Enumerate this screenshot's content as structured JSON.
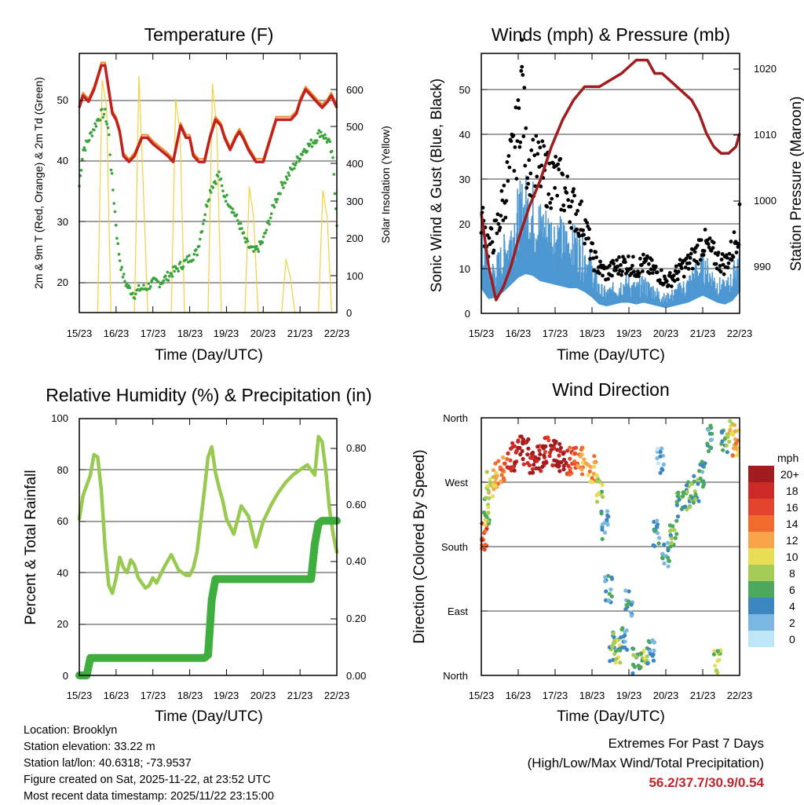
{
  "panels": {
    "temp": {
      "title": "Temperature (F)",
      "ylabel_left": "2m & 9m T (Red, Orange) & 2m Td (Green)",
      "ylabel_right": "Solar Insolation (Yellow)",
      "xlabel": "Time (Day/UTC)",
      "xticks": [
        "15/23",
        "16/23",
        "17/23",
        "18/23",
        "19/23",
        "20/23",
        "21/23",
        "22/23"
      ],
      "yticks_left": [
        "20",
        "30",
        "40",
        "50"
      ],
      "yticks_right": [
        "0",
        "100",
        "200",
        "300",
        "400",
        "500",
        "600"
      ]
    },
    "wind": {
      "title": "Winds (mph) & Pressure (mb)",
      "ylabel_left": "Sonic Wind & Gust (Blue, Black)",
      "ylabel_right": "Station Pressure (Maroon)",
      "xlabel": "Time (Day/UTC)",
      "xticks": [
        "15/23",
        "16/23",
        "17/23",
        "18/23",
        "19/23",
        "20/23",
        "21/23",
        "22/23"
      ],
      "yticks_left": [
        "0",
        "10",
        "20",
        "30",
        "40",
        "50"
      ],
      "yticks_right": [
        "990",
        "1000",
        "1010",
        "1020"
      ]
    },
    "rh": {
      "title": "Relative Humidity (%) & Precipitation (in)",
      "ylabel_left": "Percent & Total Rainfall",
      "xlabel": "Time (Day/UTC)",
      "xticks": [
        "15/23",
        "16/23",
        "17/23",
        "18/23",
        "19/23",
        "20/23",
        "21/23",
        "22/23"
      ],
      "yticks_left": [
        "0",
        "20",
        "40",
        "60",
        "80",
        "100"
      ],
      "yticks_right": [
        "0.00",
        "0.20",
        "0.40",
        "0.60",
        "0.80"
      ]
    },
    "dir": {
      "title": "Wind Direction",
      "ylabel_left": "Direction (Colored By Speed)",
      "xlabel": "Time (Day/UTC)",
      "xticks": [
        "15/23",
        "16/23",
        "17/23",
        "18/23",
        "19/23",
        "20/23",
        "21/23",
        "22/23"
      ],
      "yticks_left": [
        "North",
        "East",
        "South",
        "West",
        "North"
      ],
      "legend_title": "mph",
      "legend_labels": [
        "20+",
        "18",
        "16",
        "14",
        "12",
        "10",
        "8",
        "6",
        "4",
        "2",
        "0"
      ],
      "legend_colors": [
        "#a01c1e",
        "#cc2a27",
        "#e2442e",
        "#f26b2e",
        "#f8a54a",
        "#e9dd56",
        "#a6cc57",
        "#4ca85a",
        "#3d87c1",
        "#7ab8e2",
        "#bfe6f7"
      ]
    }
  },
  "chart_data": [
    {
      "type": "line",
      "title": "Temperature (F)",
      "xlabel": "Time (Day/UTC)",
      "ylabel": "2m & 9m T (Red, Orange) & 2m Td (Green)",
      "y2label": "Solar Insolation (Yellow)",
      "x_days": [
        0,
        7
      ],
      "ylim": [
        15,
        58
      ],
      "y2lim": [
        0,
        680
      ],
      "series": [
        {
          "name": "2m T",
          "color": "#c0201e",
          "axis": "left",
          "x": [
            0,
            0.1,
            0.25,
            0.4,
            0.55,
            0.6,
            0.7,
            0.85,
            0.9,
            1.0,
            1.1,
            1.2,
            1.35,
            1.5,
            1.7,
            1.85,
            2.0,
            2.2,
            2.4,
            2.55,
            2.65,
            2.75,
            2.9,
            3.0,
            3.1,
            3.25,
            3.4,
            3.55,
            3.7,
            3.85,
            3.95,
            4.1,
            4.25,
            4.35,
            4.45,
            4.6,
            4.8,
            5.0,
            5.2,
            5.35,
            5.6,
            5.75,
            5.9,
            6.0,
            6.15,
            6.3,
            6.45,
            6.6,
            6.75,
            6.85,
            7.0
          ],
          "values": [
            49,
            51,
            50,
            52,
            55,
            56,
            56,
            50,
            48,
            47,
            45,
            41,
            40,
            41,
            44,
            44,
            43,
            42,
            41,
            40,
            43,
            46,
            44,
            44,
            41,
            40,
            40,
            44,
            47,
            46,
            44,
            42,
            44,
            45,
            44,
            42,
            40,
            40,
            44,
            47,
            47,
            47,
            48,
            50,
            52,
            51,
            50,
            49,
            50,
            51,
            49
          ]
        },
        {
          "name": "2m Td",
          "color": "#3aa43a",
          "axis": "left",
          "x": [
            0,
            0.1,
            0.2,
            0.35,
            0.5,
            0.6,
            0.7,
            0.8,
            0.85,
            0.95,
            1.05,
            1.15,
            1.25,
            1.35,
            1.5,
            1.65,
            1.8,
            2.0,
            2.2,
            2.4,
            2.6,
            2.8,
            3.0,
            3.2,
            3.3,
            3.4,
            3.5,
            3.6,
            3.7,
            3.8,
            3.9,
            4.0,
            4.1,
            4.25,
            4.4,
            4.5,
            4.6,
            4.75,
            4.9,
            5.0,
            5.15,
            5.3,
            5.5,
            5.7,
            5.9,
            6.1,
            6.3,
            6.45,
            6.55,
            6.7,
            6.8,
            6.9,
            7.0
          ],
          "values": [
            36,
            42,
            43,
            45,
            47,
            48,
            48,
            45,
            40,
            33,
            26,
            22,
            20,
            19,
            18,
            19,
            19,
            20,
            20,
            21,
            22,
            23,
            24,
            25,
            28,
            31,
            34,
            36,
            37,
            38,
            35,
            34,
            33,
            31,
            29,
            27,
            26,
            25,
            26,
            27,
            30,
            33,
            36,
            38,
            40,
            42,
            43,
            44,
            45,
            44,
            43,
            40,
            30
          ]
        },
        {
          "name": "Solar Insolation",
          "color": "#f2d040",
          "axis": "right",
          "x": [
            0.5,
            0.62,
            0.74,
            0.86,
            1.5,
            1.62,
            1.74,
            1.86,
            2.5,
            2.62,
            2.74,
            2.86,
            3.5,
            3.62,
            3.74,
            3.86,
            4.5,
            4.62,
            4.74,
            4.86,
            5.5,
            5.62,
            5.74,
            5.86,
            6.5,
            6.62,
            6.74,
            6.86
          ],
          "values": [
            0,
            610,
            540,
            0,
            0,
            620,
            330,
            0,
            0,
            560,
            470,
            0,
            0,
            600,
            480,
            0,
            0,
            330,
            250,
            0,
            0,
            140,
            90,
            0,
            0,
            320,
            250,
            0
          ]
        }
      ]
    },
    {
      "type": "scatter",
      "title": "Winds (mph) & Pressure (mb)",
      "xlabel": "Time (Day/UTC)",
      "ylabel": "Sonic Wind & Gust (Blue, Black)",
      "y2label": "Station Pressure (Maroon)",
      "x_days": [
        0,
        7
      ],
      "ylim": [
        0,
        58
      ],
      "y2lim": [
        983,
        1022
      ],
      "series": [
        {
          "name": "Sonic Wind",
          "color": "#4d97d2",
          "axis": "left",
          "x": [
            0,
            0.2,
            0.4,
            0.6,
            0.8,
            1.0,
            1.2,
            1.4,
            1.6,
            1.8,
            2.0,
            2.2,
            2.4,
            2.6,
            2.8,
            3.0,
            3.2,
            3.4,
            3.6,
            3.8,
            4.0,
            4.2,
            4.4,
            4.6,
            4.8,
            5.0,
            5.2,
            5.4,
            5.6,
            5.8,
            6.0,
            6.2,
            6.4,
            6.6,
            6.8,
            7.0
          ],
          "values": [
            14,
            8,
            9,
            12,
            16,
            20,
            22,
            21,
            18,
            17,
            16,
            15,
            14,
            14,
            12,
            9,
            5,
            4,
            5,
            6,
            6,
            5,
            6,
            5,
            4,
            3,
            4,
            5,
            6,
            8,
            10,
            8,
            6,
            5,
            7,
            12
          ]
        },
        {
          "name": "Gust",
          "color": "#000000",
          "axis": "left",
          "x": [
            0,
            0.2,
            0.4,
            0.6,
            0.8,
            1.0,
            1.1,
            1.2,
            1.4,
            1.6,
            1.8,
            2.0,
            2.2,
            2.4,
            2.6,
            2.8,
            3.0,
            3.2,
            3.4,
            3.6,
            3.8,
            4.0,
            4.2,
            4.4,
            4.6,
            4.8,
            5.0,
            5.2,
            5.4,
            5.6,
            5.8,
            6.0,
            6.2,
            6.4,
            6.6,
            6.8,
            7.0
          ],
          "values": [
            22,
            15,
            18,
            25,
            33,
            40,
            55,
            35,
            33,
            32,
            30,
            30,
            28,
            25,
            22,
            20,
            13,
            10,
            9,
            10,
            11,
            11,
            10,
            11,
            10,
            9,
            7,
            8,
            10,
            11,
            13,
            16,
            14,
            12,
            11,
            14,
            20
          ]
        },
        {
          "name": "Station Pressure",
          "color": "#a01c1e",
          "axis": "right",
          "x": [
            0,
            0.2,
            0.4,
            0.6,
            0.8,
            1.0,
            1.3,
            1.6,
            1.9,
            2.2,
            2.5,
            2.8,
            3.0,
            3.2,
            3.5,
            3.8,
            4.0,
            4.2,
            4.5,
            4.7,
            4.9,
            5.1,
            5.3,
            5.5,
            5.7,
            5.9,
            6.1,
            6.3,
            6.5,
            6.7,
            6.9,
            7.0
          ],
          "values": [
            998,
            990,
            985,
            987,
            990,
            994,
            999,
            1003,
            1008,
            1012,
            1015,
            1017,
            1017,
            1017,
            1018,
            1019,
            1020,
            1021,
            1021,
            1019,
            1019,
            1018,
            1017,
            1016,
            1015,
            1013,
            1010,
            1008,
            1007,
            1007,
            1008,
            1010
          ]
        }
      ]
    },
    {
      "type": "line",
      "title": "Relative Humidity (%) & Precipitation (in)",
      "xlabel": "Time (Day/UTC)",
      "ylabel": "Percent & Total Rainfall",
      "x_days": [
        0,
        7
      ],
      "ylim": [
        0,
        100
      ],
      "y2lim": [
        0,
        0.88
      ],
      "series": [
        {
          "name": "Relative Humidity",
          "color": "#98c950",
          "axis": "left",
          "x": [
            0,
            0.1,
            0.2,
            0.3,
            0.4,
            0.5,
            0.6,
            0.7,
            0.8,
            0.9,
            1.0,
            1.1,
            1.2,
            1.3,
            1.4,
            1.5,
            1.6,
            1.7,
            1.8,
            1.9,
            2.0,
            2.1,
            2.3,
            2.5,
            2.7,
            2.9,
            3.0,
            3.1,
            3.2,
            3.3,
            3.4,
            3.5,
            3.6,
            3.7,
            3.8,
            3.9,
            4.0,
            4.2,
            4.4,
            4.6,
            4.8,
            5.0,
            5.2,
            5.4,
            5.6,
            5.8,
            6.0,
            6.2,
            6.4,
            6.5,
            6.6,
            6.7,
            6.8,
            6.9,
            7.0
          ],
          "values": [
            61,
            70,
            74,
            78,
            86,
            85,
            72,
            50,
            35,
            32,
            38,
            46,
            42,
            40,
            45,
            43,
            38,
            36,
            34,
            35,
            38,
            36,
            42,
            47,
            41,
            39,
            39,
            42,
            48,
            60,
            72,
            85,
            89,
            79,
            73,
            68,
            61,
            55,
            66,
            62,
            50,
            60,
            66,
            71,
            75,
            78,
            80,
            82,
            78,
            93,
            91,
            80,
            65,
            55,
            48
          ]
        },
        {
          "name": "Total Rainfall",
          "color": "#3fae3f",
          "axis": "right",
          "x": [
            0,
            0.2,
            0.3,
            0.4,
            3.4,
            3.5,
            3.6,
            3.7,
            6.3,
            6.4,
            6.5,
            6.6,
            7.0
          ],
          "values": [
            0.0,
            0.0,
            0.06,
            0.06,
            0.06,
            0.07,
            0.26,
            0.33,
            0.33,
            0.45,
            0.52,
            0.53,
            0.53
          ]
        }
      ]
    },
    {
      "type": "scatter",
      "title": "Wind Direction",
      "xlabel": "Time (Day/UTC)",
      "ylabel": "Direction (Colored By Speed)",
      "x_days": [
        0,
        7
      ],
      "ylim_deg": [
        0,
        360
      ],
      "color_scale_mph": [
        0,
        20
      ],
      "clusters": [
        {
          "x": 0.05,
          "dir": 195,
          "speed": 16
        },
        {
          "x": 0.15,
          "dir": 230,
          "speed": 8
        },
        {
          "x": 0.25,
          "dir": 265,
          "speed": 10
        },
        {
          "x": 0.4,
          "dir": 280,
          "speed": 12
        },
        {
          "x": 0.6,
          "dir": 285,
          "speed": 14
        },
        {
          "x": 0.8,
          "dir": 305,
          "speed": 18
        },
        {
          "x": 1.0,
          "dir": 315,
          "speed": 20
        },
        {
          "x": 1.2,
          "dir": 315,
          "speed": 20
        },
        {
          "x": 1.4,
          "dir": 300,
          "speed": 20
        },
        {
          "x": 1.6,
          "dir": 305,
          "speed": 18
        },
        {
          "x": 1.8,
          "dir": 315,
          "speed": 18
        },
        {
          "x": 2.0,
          "dir": 310,
          "speed": 20
        },
        {
          "x": 2.2,
          "dir": 305,
          "speed": 20
        },
        {
          "x": 2.4,
          "dir": 300,
          "speed": 16
        },
        {
          "x": 2.6,
          "dir": 310,
          "speed": 14
        },
        {
          "x": 2.8,
          "dir": 300,
          "speed": 12
        },
        {
          "x": 3.0,
          "dir": 290,
          "speed": 12
        },
        {
          "x": 3.2,
          "dir": 260,
          "speed": 8
        },
        {
          "x": 3.35,
          "dir": 210,
          "speed": 4
        },
        {
          "x": 3.45,
          "dir": 120,
          "speed": 4
        },
        {
          "x": 3.55,
          "dir": 40,
          "speed": 6
        },
        {
          "x": 3.7,
          "dir": 30,
          "speed": 8
        },
        {
          "x": 3.85,
          "dir": 50,
          "speed": 4
        },
        {
          "x": 4.0,
          "dir": 100,
          "speed": 4
        },
        {
          "x": 4.2,
          "dir": 20,
          "speed": 6
        },
        {
          "x": 4.4,
          "dir": 20,
          "speed": 8
        },
        {
          "x": 4.6,
          "dir": 30,
          "speed": 4
        },
        {
          "x": 4.75,
          "dir": 200,
          "speed": 4
        },
        {
          "x": 4.85,
          "dir": 300,
          "speed": 2
        },
        {
          "x": 5.0,
          "dir": 170,
          "speed": 4
        },
        {
          "x": 5.2,
          "dir": 200,
          "speed": 6
        },
        {
          "x": 5.4,
          "dir": 240,
          "speed": 6
        },
        {
          "x": 5.6,
          "dir": 250,
          "speed": 6
        },
        {
          "x": 5.8,
          "dir": 260,
          "speed": 6
        },
        {
          "x": 6.0,
          "dir": 280,
          "speed": 4
        },
        {
          "x": 6.2,
          "dir": 330,
          "speed": 4
        },
        {
          "x": 6.4,
          "dir": 20,
          "speed": 8
        },
        {
          "x": 6.6,
          "dir": 330,
          "speed": 6
        },
        {
          "x": 6.8,
          "dir": 340,
          "speed": 10
        },
        {
          "x": 6.9,
          "dir": 325,
          "speed": 12
        }
      ]
    }
  ],
  "footer": {
    "location": "Location: Brooklyn",
    "elevation": "Station elevation: 33.22 m",
    "latlon": "Station lat/lon: 40.6318; -73.9537",
    "created": "Figure created on Sat, 2025-11-22, at 23:52 UTC",
    "recent": "Most recent data timestamp: 2025/11/22 23:15:00"
  },
  "extremes": {
    "title": "Extremes For Past 7 Days",
    "subtitle": "(High/Low/Max Wind/Total Precipitation)",
    "values": "56.2/37.7/30.9/0.54"
  }
}
